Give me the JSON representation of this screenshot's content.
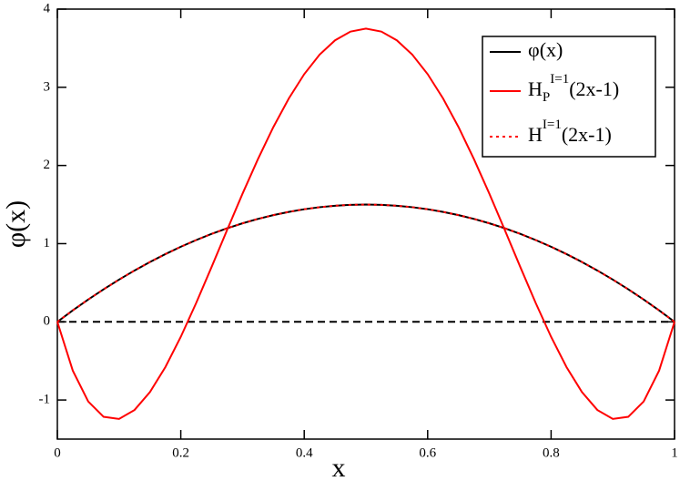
{
  "chart_data": {
    "type": "line",
    "x_label": "x",
    "y_label": "φ(x)",
    "x": [
      0,
      0.025,
      0.05,
      0.075,
      0.1,
      0.125,
      0.15,
      0.175,
      0.2,
      0.225,
      0.25,
      0.275,
      0.3,
      0.325,
      0.35,
      0.375,
      0.4,
      0.425,
      0.45,
      0.475,
      0.5,
      0.525,
      0.55,
      0.575,
      0.6,
      0.625,
      0.65,
      0.675,
      0.7,
      0.725,
      0.75,
      0.775,
      0.8,
      0.825,
      0.85,
      0.875,
      0.9,
      0.925,
      0.95,
      0.975,
      1
    ],
    "series": [
      {
        "name": [
          {
            "text": "φ(x)"
          }
        ],
        "color": "#000000",
        "dash": "solid",
        "values": [
          0,
          0.14625,
          0.285,
          0.41625,
          0.54,
          0.65625,
          0.765,
          0.86625,
          0.96,
          1.04625,
          1.125,
          1.19625,
          1.26,
          1.31625,
          1.365,
          1.40625,
          1.44,
          1.46625,
          1.485,
          1.49625,
          1.5,
          1.49625,
          1.485,
          1.46625,
          1.44,
          1.40625,
          1.365,
          1.31625,
          1.26,
          1.19625,
          1.125,
          1.04625,
          0.96,
          0.86625,
          0.765,
          0.65625,
          0.54,
          0.41625,
          0.285,
          0.14625,
          0
        ]
      },
      {
        "name": [
          {
            "text": "H"
          },
          {
            "text": "P",
            "baseline": "sub"
          },
          {
            "text": "I=1",
            "baseline": "super"
          },
          {
            "text": "(2x-1)"
          }
        ],
        "color": "#ff0000",
        "dash": "solid",
        "values": [
          0,
          -0.6243,
          -1.0189,
          -1.2149,
          -1.242,
          -1.1279,
          -0.8989,
          -0.5793,
          -0.192,
          0.2419,
          0.7031,
          1.1738,
          1.638,
          2.0813,
          2.4911,
          2.8564,
          3.168,
          3.4182,
          3.6011,
          3.7126,
          3.75,
          3.7126,
          3.6011,
          3.4182,
          3.168,
          2.8564,
          2.4911,
          2.0813,
          1.638,
          1.1738,
          0.7031,
          0.2419,
          -0.192,
          -0.5793,
          -0.8989,
          -1.1279,
          -1.242,
          -1.2149,
          -1.0189,
          -0.6243,
          0
        ]
      },
      {
        "name": [
          {
            "text": "H"
          },
          {
            "text": "I=1",
            "baseline": "super"
          },
          {
            "text": "(2x-1)"
          }
        ],
        "color": "#ff0000",
        "dash": "dotted",
        "values": [
          0,
          0.14625,
          0.285,
          0.41625,
          0.54,
          0.65625,
          0.765,
          0.86625,
          0.96,
          1.04625,
          1.125,
          1.19625,
          1.26,
          1.31625,
          1.365,
          1.40625,
          1.44,
          1.46625,
          1.485,
          1.49625,
          1.5,
          1.49625,
          1.485,
          1.46625,
          1.44,
          1.40625,
          1.365,
          1.31625,
          1.26,
          1.19625,
          1.125,
          1.04625,
          0.96,
          0.86625,
          0.765,
          0.65625,
          0.54,
          0.41625,
          0.285,
          0.14625,
          0
        ]
      }
    ],
    "reference_line": {
      "y": 0,
      "color": "#000000",
      "dash": "dashed"
    },
    "xlim": [
      0,
      1
    ],
    "xticks": [
      0,
      0.2,
      0.4,
      0.6,
      0.8,
      1
    ],
    "ylim": [
      -1.5,
      4
    ],
    "yticks": [
      -1,
      0,
      1,
      2,
      3,
      4
    ],
    "grid": false,
    "legend": "upper right"
  }
}
